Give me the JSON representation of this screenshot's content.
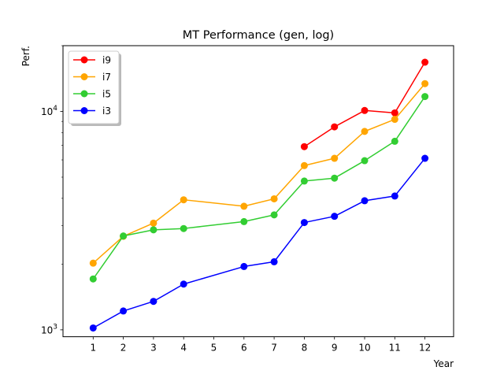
{
  "chart_data": {
    "type": "line",
    "title": "MT Performance (gen, log)",
    "xlabel": "Year",
    "ylabel": "Perf.",
    "yscale": "log",
    "xlim": [
      0.0,
      12.95
    ],
    "ylim": [
      930,
      20000
    ],
    "x_ticks": [
      1,
      2,
      3,
      4,
      5,
      6,
      7,
      8,
      9,
      10,
      11,
      12
    ],
    "x_tick_labels": [
      "1",
      "2",
      "3",
      "4",
      "5",
      "6",
      "7",
      "8",
      "9",
      "10",
      "11",
      "12"
    ],
    "y_ticks": [
      1000,
      10000
    ],
    "y_tick_labels": [
      "10³",
      "10⁴"
    ],
    "y_tick_mantissa": "10",
    "y_tick_exponents": [
      "3",
      "4"
    ],
    "grid": false,
    "legend_position": "top-left",
    "series": [
      {
        "name": "i9",
        "color": "#ff0000",
        "x": [
          8,
          9,
          10,
          11,
          12
        ],
        "values": [
          6900,
          8500,
          10100,
          9850,
          16800
        ]
      },
      {
        "name": "i7",
        "color": "#ffa500",
        "x": [
          1,
          2,
          3,
          4,
          6,
          7,
          8,
          9,
          10,
          11,
          12
        ],
        "values": [
          2020,
          2680,
          3080,
          3940,
          3680,
          3980,
          5650,
          6100,
          8100,
          9200,
          13400
        ]
      },
      {
        "name": "i5",
        "color": "#32cd32",
        "x": [
          1,
          2,
          3,
          4,
          6,
          7,
          8,
          9,
          10,
          11,
          12
        ],
        "values": [
          1710,
          2690,
          2870,
          2910,
          3130,
          3360,
          4800,
          4950,
          5950,
          7300,
          11700
        ]
      },
      {
        "name": "i3",
        "color": "#0000ff",
        "x": [
          1,
          2,
          3,
          4,
          6,
          7,
          8,
          9,
          10,
          11,
          12
        ],
        "values": [
          1020,
          1220,
          1350,
          1620,
          1950,
          2050,
          3100,
          3310,
          3900,
          4100,
          6100
        ]
      }
    ]
  }
}
